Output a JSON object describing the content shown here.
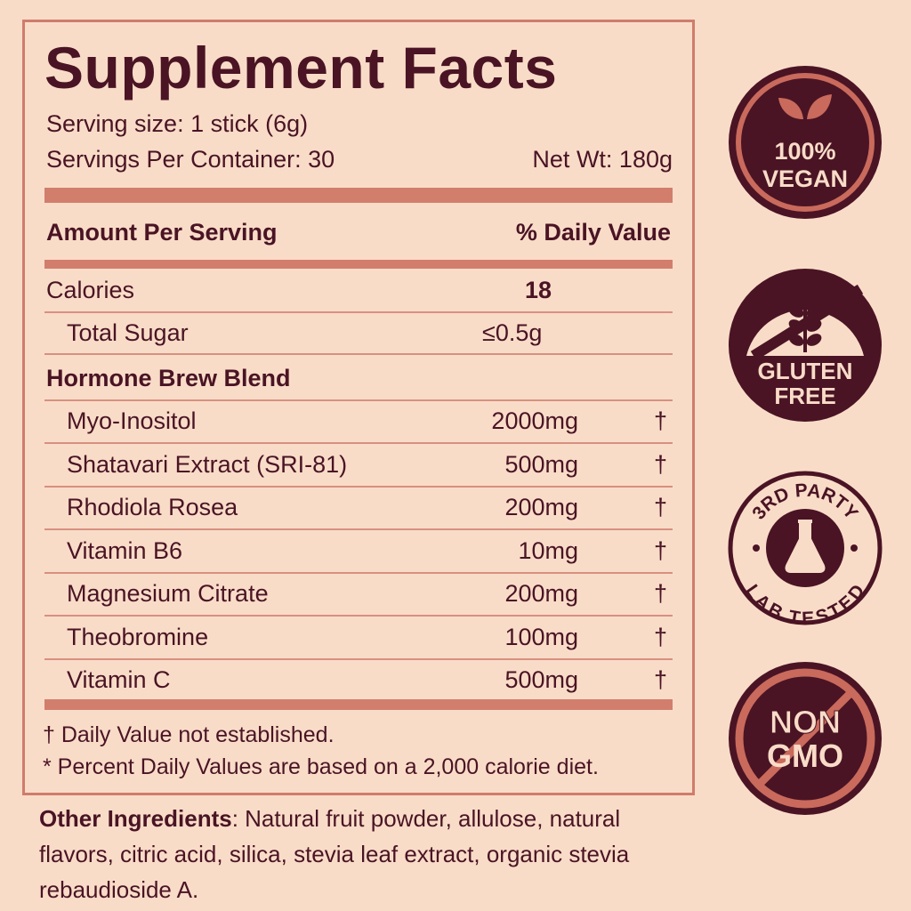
{
  "title": "Supplement Facts",
  "serving_size": "Serving size: 1 stick (6g)",
  "servings_per_container": "Servings Per Container: 30",
  "net_wt": "Net Wt: 180g",
  "header": {
    "amount": "Amount Per Serving",
    "dv": "% Daily Value"
  },
  "calories": {
    "label": "Calories",
    "value": "18"
  },
  "sugar": {
    "label": "Total Sugar",
    "value": "≤0.5g"
  },
  "blend": {
    "label": "Hormone Brew Blend",
    "items": [
      {
        "name": "Myo-Inositol",
        "amount": "2000mg",
        "dv": "†"
      },
      {
        "name": "Shatavari Extract (SRI-81)",
        "amount": "500mg",
        "dv": "†"
      },
      {
        "name": "Rhodiola Rosea",
        "amount": "200mg",
        "dv": "†"
      },
      {
        "name": "Vitamin B6",
        "amount": "10mg",
        "dv": "†"
      },
      {
        "name": "Magnesium Citrate",
        "amount": "200mg",
        "dv": "†"
      },
      {
        "name": "Theobromine",
        "amount": "100mg",
        "dv": "†"
      },
      {
        "name": "Vitamin C",
        "amount": "500mg",
        "dv": "†"
      }
    ]
  },
  "footnotes": [
    "† Daily Value not established.",
    "* Percent Daily Values are based on a 2,000 calorie diet."
  ],
  "other": {
    "label": "Other Ingredients",
    "text": ": Natural fruit powder, allulose, natural flavors, citric acid, silica, stevia leaf extract, organic stevia rebaudioside A."
  },
  "badges": {
    "vegan": [
      "100%",
      "VEGAN"
    ],
    "gluten": [
      "GLUTEN",
      "FREE"
    ],
    "lab": {
      "top": "3RD PARTY",
      "bottom": "LAB TESTED"
    },
    "gmo": [
      "NON",
      "GMO"
    ]
  },
  "colors": {
    "background": "#f9dcc8",
    "dark": "#4a1424",
    "accent": "#c96a5c"
  }
}
